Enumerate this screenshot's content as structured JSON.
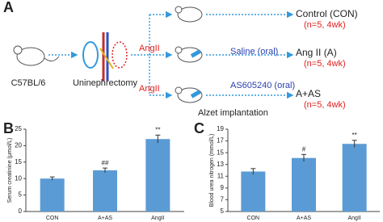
{
  "panel_a": {
    "label": "A",
    "strain": "C57BL/6",
    "surgery": "Uninephrectomy",
    "infusions": [
      "AngII",
      "AngII"
    ],
    "treatments": [
      "Saline (oral)",
      "AS605240 (oral)"
    ],
    "implant": "Alzet implantation",
    "groups": [
      {
        "name": "Control (CON)",
        "n": "(n=5, 4wk)"
      },
      {
        "name": "Ang II (A)",
        "n": "(n=5, 4wk)"
      },
      {
        "name": "A+AS",
        "n": "(n=5, 4wk)"
      }
    ]
  },
  "chart_data": [
    {
      "type": "bar",
      "panel": "B",
      "ylabel": "Serum creatinine (μmol/L)",
      "categories": [
        "CON",
        "A+AS",
        "AngII"
      ],
      "values": [
        10,
        12.5,
        22
      ],
      "errors": [
        0.5,
        0.7,
        1.2
      ],
      "annotations": [
        null,
        "##",
        "**"
      ],
      "color": "#5b9bd5",
      "ylim": [
        0,
        25
      ],
      "yticks": [
        0,
        5,
        10,
        15,
        20,
        25
      ]
    },
    {
      "type": "bar",
      "panel": "C",
      "ylabel": "Blood urea nitrogen (mmol/L)",
      "categories": [
        "CON",
        "A+AS",
        "AngII"
      ],
      "values": [
        11.8,
        14.1,
        16.5
      ],
      "errors": [
        0.5,
        0.6,
        0.6
      ],
      "annotations": [
        null,
        "#",
        "**"
      ],
      "color": "#5b9bd5",
      "ylim": [
        5,
        19
      ],
      "yticks": [
        5,
        7,
        9,
        11,
        13,
        15,
        17,
        19
      ]
    }
  ]
}
